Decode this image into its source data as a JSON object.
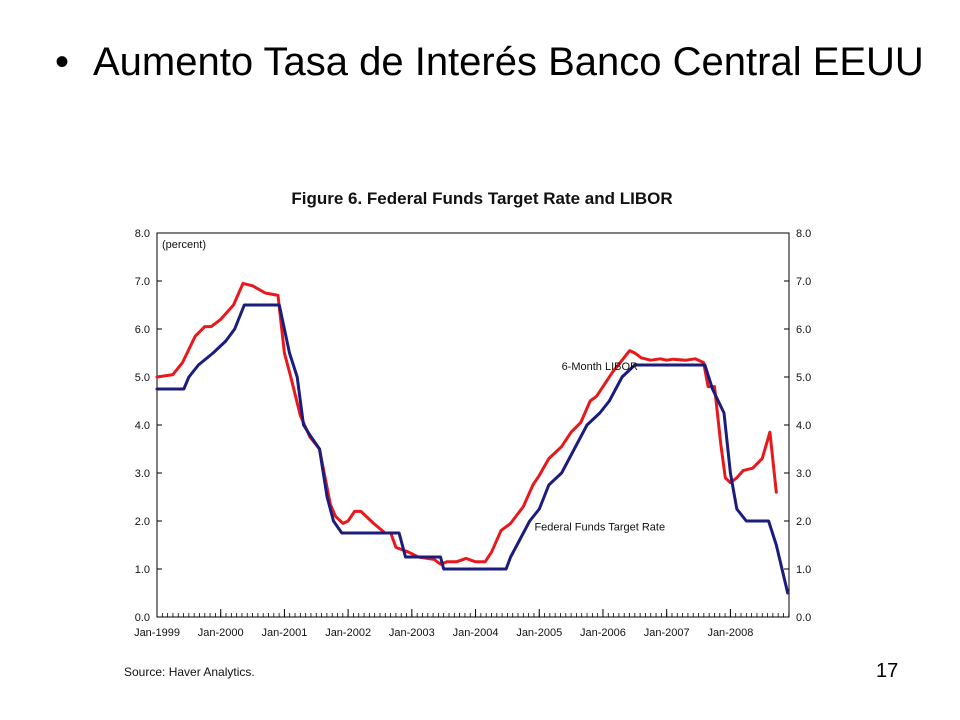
{
  "slide": {
    "bullet_glyph": "•",
    "heading": "Aumento Tasa de Interés Banco Central EEUU",
    "page_number": "17"
  },
  "chart_data": {
    "type": "line",
    "title": "Figure 6.  Federal Funds Target Rate and LIBOR",
    "unit_label": "(percent)",
    "source": "Source:  Haver Analytics.",
    "ylim": [
      0,
      8
    ],
    "y_ticks": [
      "0.0",
      "1.0",
      "2.0",
      "3.0",
      "4.0",
      "5.0",
      "6.0",
      "7.0",
      "8.0"
    ],
    "x_range": [
      1999.0,
      2008.92
    ],
    "x_ticks": [
      {
        "label": "Jan-1999",
        "x": 1999
      },
      {
        "label": "Jan-2000",
        "x": 2000
      },
      {
        "label": "Jan-2001",
        "x": 2001
      },
      {
        "label": "Jan-2002",
        "x": 2002
      },
      {
        "label": "Jan-2003",
        "x": 2003
      },
      {
        "label": "Jan-2004",
        "x": 2004
      },
      {
        "label": "Jan-2005",
        "x": 2005
      },
      {
        "label": "Jan-2006",
        "x": 2006
      },
      {
        "label": "Jan-2007",
        "x": 2007
      },
      {
        "label": "Jan-2008",
        "x": 2008
      }
    ],
    "grid": false,
    "right_axis": true,
    "series": [
      {
        "name": "6-Month LIBOR",
        "color": "#e8181c",
        "label_pos": {
          "x": 2005.95,
          "y": 5.15
        },
        "points": [
          [
            1999.0,
            5.0
          ],
          [
            1999.25,
            5.05
          ],
          [
            1999.4,
            5.3
          ],
          [
            1999.6,
            5.85
          ],
          [
            1999.75,
            6.05
          ],
          [
            1999.85,
            6.05
          ],
          [
            2000.0,
            6.2
          ],
          [
            2000.2,
            6.5
          ],
          [
            2000.35,
            6.95
          ],
          [
            2000.5,
            6.9
          ],
          [
            2000.7,
            6.75
          ],
          [
            2000.9,
            6.7
          ],
          [
            2001.0,
            5.5
          ],
          [
            2001.1,
            5.0
          ],
          [
            2001.25,
            4.2
          ],
          [
            2001.4,
            3.75
          ],
          [
            2001.55,
            3.5
          ],
          [
            2001.72,
            2.35
          ],
          [
            2001.8,
            2.1
          ],
          [
            2001.92,
            1.95
          ],
          [
            2002.0,
            2.0
          ],
          [
            2002.1,
            2.2
          ],
          [
            2002.2,
            2.2
          ],
          [
            2002.4,
            1.95
          ],
          [
            2002.58,
            1.75
          ],
          [
            2002.67,
            1.75
          ],
          [
            2002.75,
            1.45
          ],
          [
            2002.95,
            1.35
          ],
          [
            2003.1,
            1.25
          ],
          [
            2003.35,
            1.2
          ],
          [
            2003.45,
            1.1
          ],
          [
            2003.55,
            1.15
          ],
          [
            2003.7,
            1.15
          ],
          [
            2003.85,
            1.22
          ],
          [
            2004.0,
            1.15
          ],
          [
            2004.15,
            1.15
          ],
          [
            2004.25,
            1.35
          ],
          [
            2004.4,
            1.8
          ],
          [
            2004.55,
            1.95
          ],
          [
            2004.75,
            2.3
          ],
          [
            2004.9,
            2.75
          ],
          [
            2005.0,
            2.95
          ],
          [
            2005.15,
            3.3
          ],
          [
            2005.35,
            3.55
          ],
          [
            2005.5,
            3.85
          ],
          [
            2005.65,
            4.05
          ],
          [
            2005.8,
            4.5
          ],
          [
            2005.9,
            4.6
          ],
          [
            2006.0,
            4.8
          ],
          [
            2006.15,
            5.1
          ],
          [
            2006.3,
            5.35
          ],
          [
            2006.42,
            5.55
          ],
          [
            2006.5,
            5.5
          ],
          [
            2006.6,
            5.4
          ],
          [
            2006.75,
            5.35
          ],
          [
            2006.9,
            5.38
          ],
          [
            2007.0,
            5.35
          ],
          [
            2007.1,
            5.37
          ],
          [
            2007.3,
            5.35
          ],
          [
            2007.45,
            5.38
          ],
          [
            2007.58,
            5.3
          ],
          [
            2007.65,
            4.8
          ],
          [
            2007.75,
            4.8
          ],
          [
            2007.85,
            3.6
          ],
          [
            2007.92,
            2.9
          ],
          [
            2008.0,
            2.8
          ],
          [
            2008.1,
            2.9
          ],
          [
            2008.2,
            3.05
          ],
          [
            2008.35,
            3.1
          ],
          [
            2008.5,
            3.3
          ],
          [
            2008.62,
            3.85
          ],
          [
            2008.72,
            2.6
          ]
        ]
      },
      {
        "name": "Federal Funds Target Rate",
        "color": "#1c1c7d",
        "label_pos": {
          "x": 2005.95,
          "y": 1.8
        },
        "points": [
          [
            1999.0,
            4.75
          ],
          [
            1999.42,
            4.75
          ],
          [
            1999.5,
            5.0
          ],
          [
            1999.65,
            5.25
          ],
          [
            1999.88,
            5.5
          ],
          [
            2000.08,
            5.75
          ],
          [
            2000.22,
            6.0
          ],
          [
            2000.37,
            6.5
          ],
          [
            2000.92,
            6.5
          ],
          [
            2001.0,
            6.0
          ],
          [
            2001.08,
            5.5
          ],
          [
            2001.2,
            5.0
          ],
          [
            2001.3,
            4.0
          ],
          [
            2001.42,
            3.75
          ],
          [
            2001.55,
            3.5
          ],
          [
            2001.67,
            2.5
          ],
          [
            2001.77,
            2.0
          ],
          [
            2001.9,
            1.75
          ],
          [
            2002.8,
            1.75
          ],
          [
            2002.9,
            1.25
          ],
          [
            2003.45,
            1.25
          ],
          [
            2003.5,
            1.0
          ],
          [
            2004.48,
            1.0
          ],
          [
            2004.55,
            1.25
          ],
          [
            2004.65,
            1.5
          ],
          [
            2004.85,
            2.0
          ],
          [
            2005.0,
            2.25
          ],
          [
            2005.15,
            2.75
          ],
          [
            2005.35,
            3.0
          ],
          [
            2005.55,
            3.5
          ],
          [
            2005.75,
            4.0
          ],
          [
            2005.95,
            4.25
          ],
          [
            2006.1,
            4.5
          ],
          [
            2006.3,
            5.0
          ],
          [
            2006.5,
            5.25
          ],
          [
            2007.6,
            5.25
          ],
          [
            2007.72,
            4.75
          ],
          [
            2007.9,
            4.25
          ],
          [
            2008.0,
            3.0
          ],
          [
            2008.1,
            2.25
          ],
          [
            2008.25,
            2.0
          ],
          [
            2008.6,
            2.0
          ],
          [
            2008.72,
            1.5
          ],
          [
            2008.9,
            0.5
          ]
        ]
      }
    ]
  }
}
